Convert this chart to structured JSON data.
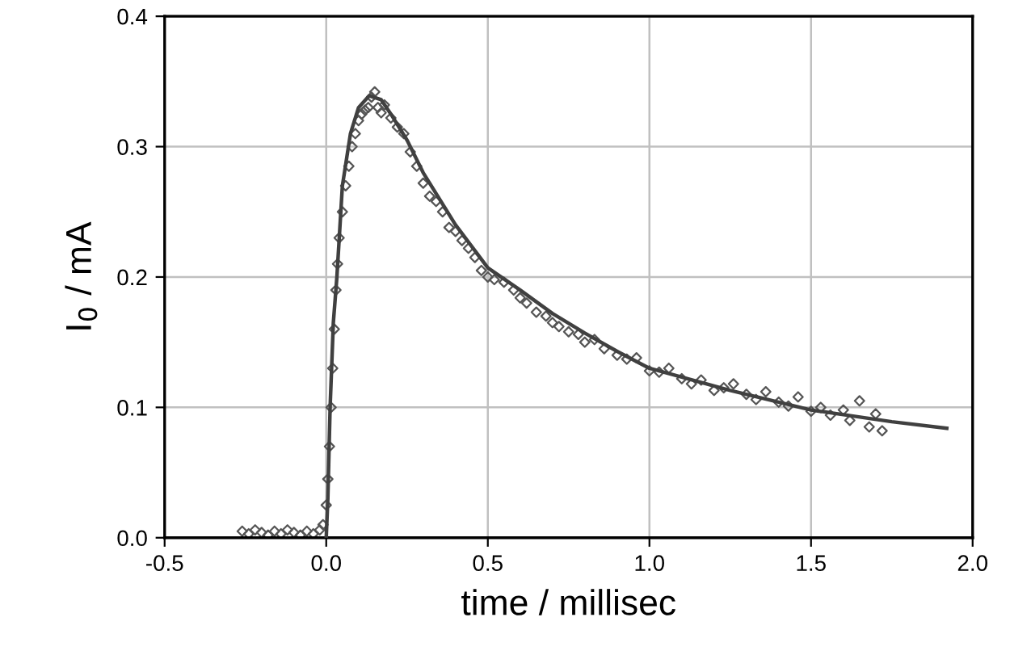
{
  "chart_data": {
    "type": "scatter",
    "xlabel": "time / millisec",
    "ylabel": "I$_{0}$ / mA",
    "xlim": [
      -0.5,
      2.0
    ],
    "xticks": [
      -0.5,
      {
        "value": 0,
        "label": "0.0"
      },
      0.5,
      {
        "value": 1,
        "label": "1.0"
      },
      1.5,
      {
        "value": 2,
        "label": "2.0"
      }
    ],
    "ylim": [
      0,
      0.4
    ],
    "yticks": [
      {
        "value": 0,
        "label": "0.0"
      },
      0.1,
      0.2,
      0.3,
      0.4
    ],
    "grid": true,
    "legend": false,
    "series": [
      {
        "marker": "diamond",
        "color": "#555555",
        "x": [
          -0.26,
          -0.24,
          -0.22,
          -0.2,
          -0.18,
          -0.16,
          -0.14,
          -0.12,
          -0.1,
          -0.08,
          -0.06,
          -0.04,
          -0.02,
          -0.01,
          0.0,
          0.005,
          0.01,
          0.015,
          0.02,
          0.025,
          0.03,
          0.035,
          0.04,
          0.05,
          0.06,
          0.07,
          0.08,
          0.09,
          0.1,
          0.11,
          0.12,
          0.13,
          0.14,
          0.15,
          0.16,
          0.17,
          0.18,
          0.2,
          0.22,
          0.24,
          0.26,
          0.28,
          0.3,
          0.32,
          0.34,
          0.36,
          0.38,
          0.4,
          0.42,
          0.44,
          0.46,
          0.48,
          0.5,
          0.52,
          0.55,
          0.58,
          0.6,
          0.62,
          0.65,
          0.68,
          0.7,
          0.72,
          0.75,
          0.78,
          0.8,
          0.83,
          0.86,
          0.9,
          0.93,
          0.96,
          1.0,
          1.03,
          1.06,
          1.1,
          1.13,
          1.16,
          1.2,
          1.23,
          1.26,
          1.3,
          1.33,
          1.36,
          1.4,
          1.43,
          1.46,
          1.5,
          1.53,
          1.56,
          1.6,
          1.62,
          1.65,
          1.68,
          1.7,
          1.72
        ],
        "values": [
          0.005,
          0.003,
          0.006,
          0.004,
          0.002,
          0.005,
          0.003,
          0.006,
          0.004,
          0.002,
          0.005,
          0.003,
          0.006,
          0.01,
          0.025,
          0.045,
          0.07,
          0.1,
          0.13,
          0.16,
          0.19,
          0.21,
          0.23,
          0.25,
          0.27,
          0.285,
          0.3,
          0.31,
          0.32,
          0.325,
          0.328,
          0.33,
          0.338,
          0.342,
          0.33,
          0.326,
          0.332,
          0.322,
          0.315,
          0.31,
          0.296,
          0.285,
          0.272,
          0.262,
          0.258,
          0.25,
          0.238,
          0.235,
          0.228,
          0.222,
          0.215,
          0.205,
          0.2,
          0.198,
          0.196,
          0.19,
          0.184,
          0.18,
          0.173,
          0.17,
          0.165,
          0.162,
          0.158,
          0.156,
          0.15,
          0.152,
          0.145,
          0.14,
          0.137,
          0.138,
          0.128,
          0.127,
          0.13,
          0.122,
          0.118,
          0.121,
          0.113,
          0.115,
          0.118,
          0.11,
          0.106,
          0.112,
          0.104,
          0.101,
          0.108,
          0.097,
          0.1,
          0.094,
          0.098,
          0.09,
          0.105,
          0.085,
          0.095,
          0.082
        ]
      },
      {
        "type": "line",
        "marker": "none",
        "line_style": "solid",
        "color": "#404040",
        "x": [
          0.0,
          0.005,
          0.012,
          0.022,
          0.033,
          0.05,
          0.075,
          0.1,
          0.133,
          0.17,
          0.2,
          0.25,
          0.3,
          0.4,
          0.5,
          0.6,
          0.7,
          0.8,
          0.9,
          1.0,
          1.25,
          1.5,
          1.75,
          1.92
        ],
        "values": [
          0.0,
          0.03,
          0.1,
          0.165,
          0.2,
          0.27,
          0.31,
          0.33,
          0.339,
          0.336,
          0.325,
          0.305,
          0.28,
          0.24,
          0.207,
          0.19,
          0.172,
          0.157,
          0.143,
          0.13,
          0.113,
          0.098,
          0.089,
          0.084
        ]
      }
    ]
  }
}
